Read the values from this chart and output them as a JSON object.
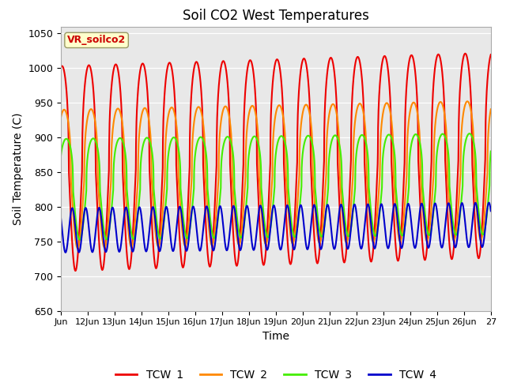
{
  "title": "Soil CO2 West Temperatures",
  "xlabel": "Time",
  "ylabel": "Soil Temperature (C)",
  "ylim": [
    650,
    1060
  ],
  "yticks": [
    650,
    700,
    750,
    800,
    850,
    900,
    950,
    1000,
    1050
  ],
  "xlim_start": 11,
  "xlim_end": 27,
  "xtick_labels": [
    "Jun",
    "12Jun",
    "13Jun",
    "14Jun",
    "15Jun",
    "16Jun",
    "17Jun",
    "18Jun",
    "19Jun",
    "20Jun",
    "21Jun",
    "22Jun",
    "23Jun",
    "24Jun",
    "25Jun",
    "26Jun",
    "27"
  ],
  "xtick_positions": [
    11,
    12,
    13,
    14,
    15,
    16,
    17,
    18,
    19,
    20,
    21,
    22,
    23,
    24,
    25,
    26,
    27
  ],
  "annotation_text": "VR_soilco2",
  "annotation_color": "#cc0000",
  "annotation_bg": "#ffffcc",
  "annotation_border": "#999966",
  "colors": {
    "TCW_1": "#ee0000",
    "TCW_2": "#ff8800",
    "TCW_3": "#44ee00",
    "TCW_4": "#0000cc"
  },
  "bg_color": "#e8e8e8",
  "line_width": 1.5,
  "n_points": 2000
}
